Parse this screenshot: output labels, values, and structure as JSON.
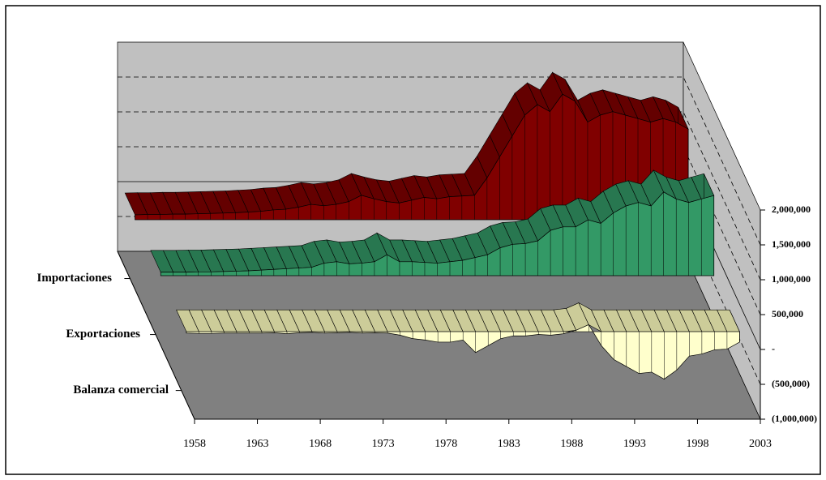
{
  "chart_data": {
    "type": "area3d",
    "x": [
      1958,
      1959,
      1960,
      1961,
      1962,
      1963,
      1964,
      1965,
      1966,
      1967,
      1968,
      1969,
      1970,
      1971,
      1972,
      1973,
      1974,
      1975,
      1976,
      1977,
      1978,
      1979,
      1980,
      1981,
      1982,
      1983,
      1984,
      1985,
      1986,
      1987,
      1988,
      1989,
      1990,
      1991,
      1992,
      1993,
      1994,
      1995,
      1996,
      1997,
      1998,
      1999,
      2000,
      2001,
      2002
    ],
    "xlim": [
      1958,
      2003
    ],
    "xticks": [
      1958,
      1963,
      1968,
      1973,
      1978,
      1983,
      1988,
      1993,
      1998,
      2003
    ],
    "ylim": [
      -1000000,
      2000000
    ],
    "yticks": [
      {
        "value": -1000000,
        "label": "(1,000,000)"
      },
      {
        "value": -500000,
        "label": "(500,000)"
      },
      {
        "value": 0,
        "label": "-"
      },
      {
        "value": 500000,
        "label": "500,000"
      },
      {
        "value": 1000000,
        "label": "1,000,000"
      },
      {
        "value": 1500000,
        "label": "1,500,000"
      },
      {
        "value": 2000000,
        "label": "2,000,000"
      }
    ],
    "grid": true,
    "series": [
      {
        "name": "Importaciones",
        "color": "#800000",
        "values": [
          70000,
          75000,
          75000,
          80000,
          80000,
          85000,
          90000,
          95000,
          100000,
          110000,
          120000,
          140000,
          150000,
          180000,
          220000,
          200000,
          220000,
          260000,
          350000,
          300000,
          260000,
          240000,
          280000,
          320000,
          300000,
          330000,
          340000,
          350000,
          600000,
          900000,
          1200000,
          1500000,
          1650000,
          1550000,
          1800000,
          1700000,
          1400000,
          1500000,
          1550000,
          1500000,
          1450000,
          1400000,
          1450000,
          1400000,
          1300000
        ]
      },
      {
        "name": "Exportaciones",
        "color": "#339966",
        "values": [
          50000,
          50000,
          50000,
          55000,
          55000,
          60000,
          65000,
          70000,
          80000,
          90000,
          100000,
          110000,
          120000,
          180000,
          200000,
          170000,
          180000,
          200000,
          300000,
          200000,
          200000,
          190000,
          180000,
          200000,
          220000,
          260000,
          300000,
          400000,
          450000,
          460000,
          500000,
          650000,
          700000,
          700000,
          800000,
          750000,
          900000,
          1000000,
          1050000,
          1000000,
          1200000,
          1100000,
          1050000,
          1100000,
          1150000
        ]
      },
      {
        "name": "Balanza comercial",
        "color": "#ffffcc",
        "values": [
          -20000,
          -25000,
          -25000,
          -20000,
          -20000,
          -20000,
          -20000,
          -15000,
          -30000,
          -15000,
          -10000,
          -20000,
          -15000,
          -10000,
          -20000,
          -15000,
          -20000,
          -50000,
          -100000,
          -120000,
          -150000,
          -150000,
          -120000,
          -300000,
          -200000,
          -100000,
          -60000,
          -60000,
          -40000,
          -50000,
          -30000,
          20000,
          100000,
          -200000,
          -400000,
          -500000,
          -600000,
          -580000,
          -680000,
          -550000,
          -350000,
          -320000,
          -260000,
          -250000,
          -150000
        ]
      }
    ]
  }
}
